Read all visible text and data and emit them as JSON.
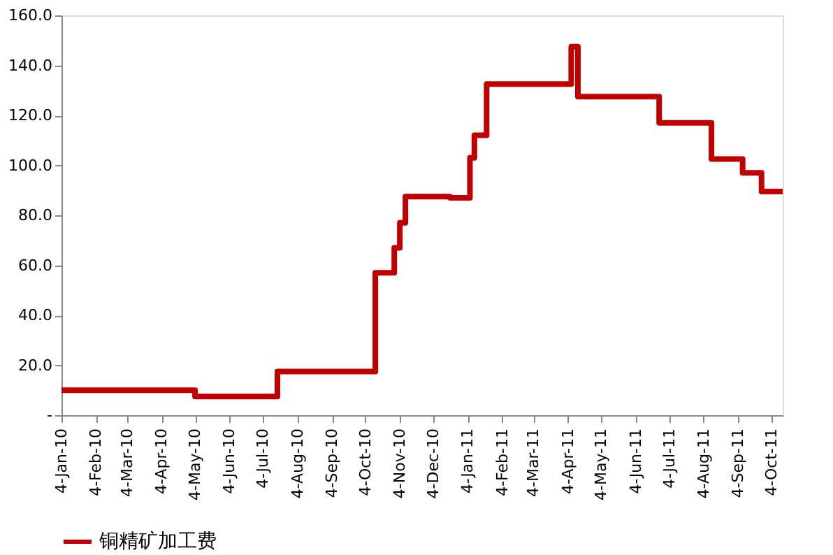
{
  "chart_data": {
    "type": "step",
    "x": [
      "2010-01-04",
      "2010-05-04",
      "2010-07-17",
      "2010-10-13",
      "2010-10-30",
      "2010-11-04",
      "2010-11-09",
      "2010-12-19",
      "2011-01-06",
      "2011-01-10",
      "2011-01-21",
      "2011-04-07",
      "2011-04-13",
      "2011-06-25",
      "2011-08-11",
      "2011-09-08",
      "2011-09-25",
      "2011-10-14"
    ],
    "series": [
      {
        "name": "铜精矿加工费",
        "color": "#c00000",
        "values": [
          10,
          7.5,
          17.5,
          57,
          67,
          77,
          87.5,
          87,
          103,
          112,
          132.5,
          147.5,
          127.5,
          117,
          102.5,
          97,
          89.5,
          89.5
        ]
      }
    ],
    "xlim": [
      "2010-01-04",
      "2011-10-14"
    ],
    "xticks": [
      {
        "value": "2010-01-04",
        "label": "4-Jan-10"
      },
      {
        "value": "2010-02-04",
        "label": "4-Feb-10"
      },
      {
        "value": "2010-03-04",
        "label": "4-Mar-10"
      },
      {
        "value": "2010-04-04",
        "label": "4-Apr-10"
      },
      {
        "value": "2010-05-04",
        "label": "4-May-10"
      },
      {
        "value": "2010-06-04",
        "label": "4-Jun-10"
      },
      {
        "value": "2010-07-04",
        "label": "4-Jul-10"
      },
      {
        "value": "2010-08-04",
        "label": "4-Aug-10"
      },
      {
        "value": "2010-09-04",
        "label": "4-Sep-10"
      },
      {
        "value": "2010-10-04",
        "label": "4-Oct-10"
      },
      {
        "value": "2010-11-04",
        "label": "4-Nov-10"
      },
      {
        "value": "2010-12-04",
        "label": "4-Dec-10"
      },
      {
        "value": "2011-01-04",
        "label": "4-Jan-11"
      },
      {
        "value": "2011-02-04",
        "label": "4-Feb-11"
      },
      {
        "value": "2011-03-04",
        "label": "4-Mar-11"
      },
      {
        "value": "2011-04-04",
        "label": "4-Apr-11"
      },
      {
        "value": "2011-05-04",
        "label": "4-May-11"
      },
      {
        "value": "2011-06-04",
        "label": "4-Jun-11"
      },
      {
        "value": "2011-07-04",
        "label": "4-Jul-11"
      },
      {
        "value": "2011-08-04",
        "label": "4-Aug-11"
      },
      {
        "value": "2011-09-04",
        "label": "4-Sep-11"
      },
      {
        "value": "2011-10-04",
        "label": "4-Oct-11"
      }
    ],
    "ylim": [
      0,
      160
    ],
    "yticks": [
      {
        "value": 0,
        "label": "-"
      },
      {
        "value": 20,
        "label": "20.0"
      },
      {
        "value": 40,
        "label": "40.0"
      },
      {
        "value": 60,
        "label": "60.0"
      },
      {
        "value": 80,
        "label": "80.0"
      },
      {
        "value": 100,
        "label": "100.0"
      },
      {
        "value": 120,
        "label": "120.0"
      },
      {
        "value": 140,
        "label": "140.0"
      },
      {
        "value": 160,
        "label": "160.0"
      }
    ],
    "grid": false,
    "legend": "bottom",
    "line_style": "solid",
    "marker": "none"
  }
}
